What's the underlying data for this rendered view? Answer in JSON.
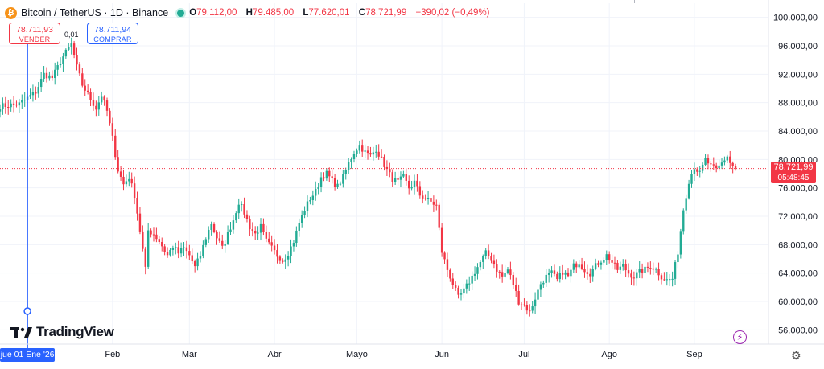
{
  "legend": {
    "icon_glyph": "₿",
    "title": "Bitcoin / TetherUS · 1D · Binance",
    "open_key": "O",
    "open": "79.112,00",
    "high_key": "H",
    "high": "79.485,00",
    "low_key": "L",
    "low": "77.620,01",
    "close_key": "C",
    "close": "78.721,99",
    "change": "−390,02 (−0,49%)"
  },
  "trade": {
    "sell_price": "78.711,93",
    "sell_label": "VENDER",
    "buy_price": "78.711,94",
    "buy_label": "COMPRAR",
    "spread": "0,01"
  },
  "last_price": {
    "value": "78.721,99",
    "countdown": "05:48:45"
  },
  "crosshair_date": "jue 01 Ene '26",
  "brand": {
    "name": "TradingView",
    "icon": "tradingview-logo-icon"
  },
  "icons": {
    "flash": "flash-icon",
    "settings": "gear-icon"
  },
  "colors": {
    "up": "#22ab94",
    "down": "#f23645",
    "crosshair": "#2962ff",
    "grid": "#f0f3fa",
    "axis_text": "#131722"
  },
  "chart_data": {
    "type": "candlestick",
    "symbol": "Bitcoin / TetherUS",
    "interval": "1D",
    "exchange": "Binance",
    "ylim": [
      54000,
      102000
    ],
    "y_ticks": [
      56000,
      60000,
      64000,
      68000,
      72000,
      76000,
      80000,
      84000,
      88000,
      92000,
      96000,
      100000
    ],
    "y_tick_labels": [
      "56.000,00",
      "60.000,00",
      "64.000,00",
      "68.000,00",
      "72.000,00",
      "76.000,00",
      "80.000,00",
      "84.000,00",
      "88.000,00",
      "92.000,00",
      "96.000,00",
      "100.000,00"
    ],
    "x_tick_labels": [
      "Feb",
      "Mar",
      "Abr",
      "Mayo",
      "Jun",
      "Jul",
      "Ago",
      "Sep"
    ],
    "x_tick_days": [
      31,
      59,
      90,
      120,
      151,
      181,
      212,
      243
    ],
    "x_range_days": [
      -10,
      270
    ],
    "last_price": 78721.99,
    "crosshair_day": 0,
    "grid": true,
    "key_closes": [
      [
        -10,
        87500
      ],
      [
        -3,
        87800
      ],
      [
        3,
        89500
      ],
      [
        6,
        92000
      ],
      [
        9,
        91500
      ],
      [
        13,
        94500
      ],
      [
        16,
        96200
      ],
      [
        18,
        93000
      ],
      [
        20,
        90500
      ],
      [
        23,
        88500
      ],
      [
        25,
        87200
      ],
      [
        27,
        89000
      ],
      [
        29,
        86800
      ],
      [
        31,
        83000
      ],
      [
        33,
        78500
      ],
      [
        35,
        76500
      ],
      [
        37,
        77500
      ],
      [
        39,
        75000
      ],
      [
        41,
        70000
      ],
      [
        43,
        64500
      ],
      [
        44,
        70000
      ],
      [
        46,
        69500
      ],
      [
        48,
        68500
      ],
      [
        51,
        66500
      ],
      [
        53,
        67800
      ],
      [
        55,
        66800
      ],
      [
        57,
        67500
      ],
      [
        59,
        66500
      ],
      [
        61,
        64800
      ],
      [
        63,
        66500
      ],
      [
        65,
        69000
      ],
      [
        67,
        71000
      ],
      [
        69,
        69000
      ],
      [
        71,
        67500
      ],
      [
        73,
        69500
      ],
      [
        75,
        71500
      ],
      [
        77,
        74000
      ],
      [
        79,
        72500
      ],
      [
        81,
        70500
      ],
      [
        83,
        69500
      ],
      [
        85,
        70500
      ],
      [
        87,
        68500
      ],
      [
        89,
        67500
      ],
      [
        91,
        66500
      ],
      [
        93,
        65800
      ],
      [
        95,
        66800
      ],
      [
        97,
        68500
      ],
      [
        99,
        71000
      ],
      [
        101,
        73000
      ],
      [
        103,
        74500
      ],
      [
        105,
        75500
      ],
      [
        107,
        77500
      ],
      [
        109,
        78000
      ],
      [
        111,
        77000
      ],
      [
        113,
        76200
      ],
      [
        115,
        77500
      ],
      [
        117,
        79500
      ],
      [
        119,
        81000
      ],
      [
        121,
        82000
      ],
      [
        123,
        81000
      ],
      [
        125,
        80500
      ],
      [
        127,
        81500
      ],
      [
        129,
        80000
      ],
      [
        131,
        78500
      ],
      [
        133,
        77200
      ],
      [
        135,
        76800
      ],
      [
        137,
        77500
      ],
      [
        139,
        76000
      ],
      [
        141,
        76800
      ],
      [
        143,
        75000
      ],
      [
        145,
        74500
      ],
      [
        147,
        74000
      ],
      [
        149,
        73500
      ],
      [
        151,
        67000
      ],
      [
        153,
        64500
      ],
      [
        155,
        62500
      ],
      [
        157,
        60500
      ],
      [
        159,
        61500
      ],
      [
        161,
        62800
      ],
      [
        163,
        64200
      ],
      [
        165,
        65500
      ],
      [
        167,
        66800
      ],
      [
        169,
        66000
      ],
      [
        171,
        64500
      ],
      [
        173,
        63500
      ],
      [
        175,
        64500
      ],
      [
        177,
        62500
      ],
      [
        179,
        60000
      ],
      [
        181,
        59500
      ],
      [
        183,
        58500
      ],
      [
        185,
        60500
      ],
      [
        187,
        62500
      ],
      [
        189,
        63500
      ],
      [
        191,
        64000
      ],
      [
        193,
        63000
      ],
      [
        195,
        64200
      ],
      [
        197,
        63500
      ],
      [
        199,
        65000
      ],
      [
        201,
        65500
      ],
      [
        203,
        64500
      ],
      [
        205,
        64000
      ],
      [
        207,
        65000
      ],
      [
        209,
        65800
      ],
      [
        211,
        66500
      ],
      [
        213,
        65500
      ],
      [
        215,
        64500
      ],
      [
        217,
        65000
      ],
      [
        219,
        64000
      ],
      [
        221,
        63500
      ],
      [
        223,
        64200
      ],
      [
        225,
        64500
      ],
      [
        227,
        65000
      ],
      [
        229,
        64500
      ],
      [
        231,
        63500
      ],
      [
        233,
        63000
      ],
      [
        235,
        63200
      ],
      [
        237,
        67000
      ],
      [
        239,
        73000
      ],
      [
        241,
        77000
      ],
      [
        243,
        79000
      ],
      [
        245,
        78000
      ],
      [
        247,
        80000
      ],
      [
        249,
        79000
      ],
      [
        251,
        78500
      ],
      [
        253,
        79500
      ],
      [
        255,
        80500
      ],
      [
        256,
        79500
      ],
      [
        258,
        78721.99
      ]
    ]
  }
}
